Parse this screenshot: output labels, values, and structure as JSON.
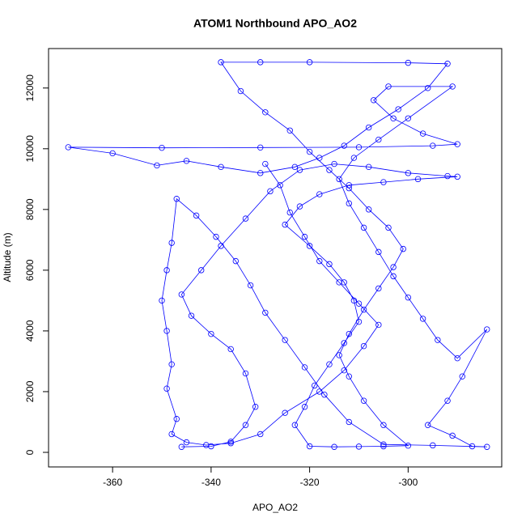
{
  "chart_data": {
    "type": "line",
    "title": "ATOM1 Northbound APO_AO2",
    "x_label": "APO_AO2",
    "y_label": "Altitude (m)",
    "color": "#0000ff",
    "marker": "circle",
    "xlim": [
      -373,
      -281
    ],
    "ylim": [
      -480,
      13300
    ],
    "xticks": [
      -360,
      -340,
      -320,
      -300
    ],
    "yticks": [
      0,
      2000,
      4000,
      6000,
      8000,
      10000,
      12000
    ],
    "x": [
      -346,
      -340,
      -336,
      -333,
      -331,
      -333,
      -336,
      -340,
      -344,
      -346,
      -342,
      -338,
      -333,
      -328,
      -322,
      -315,
      -308,
      -300,
      -292,
      -290,
      -298,
      -305,
      -312,
      -318,
      -322,
      -325,
      -320,
      -316,
      -313,
      -311,
      -310,
      -313,
      -316,
      -319,
      -321,
      -323,
      -320,
      -315,
      -310,
      -305,
      -300,
      -305,
      -309,
      -312,
      -314,
      -312,
      -309,
      -306,
      -303,
      -301,
      -304,
      -308,
      -312,
      -316,
      -320,
      -324,
      -329,
      -334,
      -338,
      -330,
      -320,
      -300,
      -292,
      -296,
      -302,
      -308,
      -313,
      -318,
      -323,
      -330,
      -338,
      -345,
      -351,
      -360,
      -369,
      -350,
      -330,
      -310,
      -295,
      -290,
      -297,
      -303,
      -307,
      -304,
      -291,
      -300,
      -306,
      -311,
      -314,
      -312,
      -309,
      -306,
      -303,
      -300,
      -297,
      -294,
      -290,
      -284,
      -289,
      -292,
      -296,
      -291,
      -287,
      -284,
      -295,
      -305,
      -312,
      -317,
      -321,
      -325,
      -329,
      -332,
      -335,
      -339,
      -343,
      -347,
      -348,
      -349,
      -350,
      -349,
      -348,
      -349,
      -347,
      -348,
      -345,
      -341,
      -336,
      -330,
      -325,
      -318,
      -313,
      -309,
      -306,
      -310,
      -314,
      -318,
      -321,
      -324,
      -326,
      -329
    ],
    "values": [
      180,
      200,
      350,
      900,
      1500,
      2600,
      3400,
      3900,
      4500,
      5200,
      6000,
      6800,
      7700,
      8600,
      9300,
      9500,
      9400,
      9200,
      9100,
      9080,
      9000,
      8900,
      8800,
      8500,
      8100,
      7500,
      6800,
      6200,
      5600,
      5000,
      4300,
      3600,
      2900,
      2200,
      1500,
      900,
      200,
      180,
      190,
      200,
      220,
      900,
      1700,
      2500,
      3200,
      3900,
      4700,
      5400,
      6100,
      6700,
      7400,
      8000,
      8700,
      9300,
      9900,
      10600,
      11200,
      11900,
      12850,
      12850,
      12850,
      12830,
      12800,
      12000,
      11300,
      10700,
      10100,
      9700,
      9400,
      9200,
      9400,
      9600,
      9450,
      9850,
      10050,
      10030,
      10040,
      10050,
      10100,
      10150,
      10500,
      11000,
      11600,
      12050,
      12050,
      11000,
      10300,
      9700,
      9000,
      8200,
      7400,
      6600,
      5800,
      5100,
      4400,
      3700,
      3100,
      4050,
      2500,
      1700,
      900,
      550,
      200,
      180,
      230,
      260,
      1000,
      1900,
      2800,
      3700,
      4600,
      5500,
      6300,
      7100,
      7800,
      8350,
      6900,
      6000,
      5000,
      4000,
      2900,
      2100,
      1100,
      600,
      330,
      240,
      300,
      600,
      1300,
      2000,
      2700,
      3500,
      4200,
      4900,
      5600,
      6300,
      7100,
      7900,
      8800,
      9500
    ]
  }
}
